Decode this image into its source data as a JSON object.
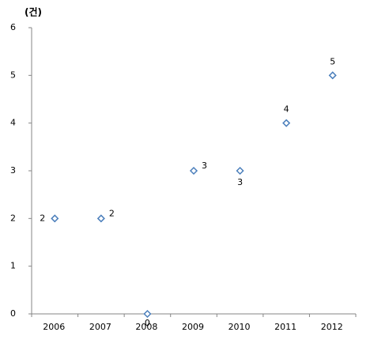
{
  "chart_data": {
    "type": "line",
    "y_unit_label": "(건)",
    "categories": [
      "2006",
      "2007",
      "2008",
      "2009",
      "2010",
      "2011",
      "2012"
    ],
    "values": [
      2,
      2,
      0,
      3,
      3,
      4,
      5
    ],
    "color": "#4a7ebb",
    "ylim": [
      0,
      6
    ],
    "yticks": [
      0,
      1,
      2,
      3,
      4,
      5,
      6
    ],
    "grid": false
  }
}
